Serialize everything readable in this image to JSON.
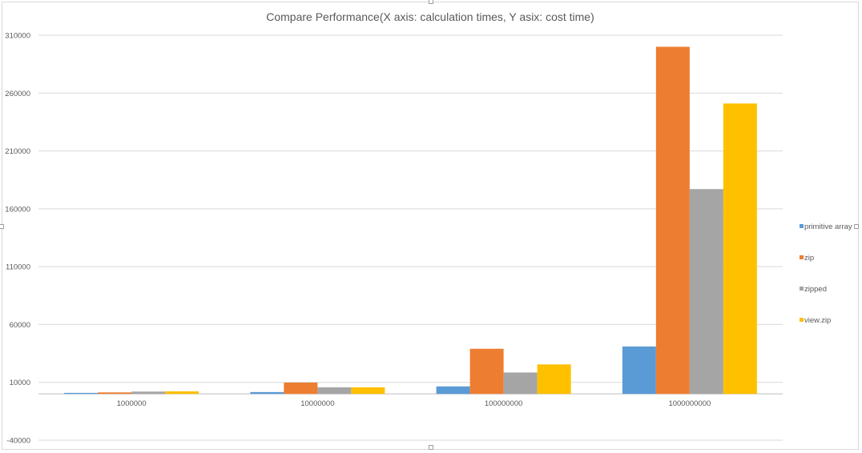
{
  "chart_data": {
    "type": "bar",
    "title": "Compare Performance(X axis: calculation times, Y asix: cost time)",
    "xlabel": "",
    "ylabel": "",
    "categories": [
      "1000000",
      "10000000",
      "100000000",
      "1000000000"
    ],
    "series": [
      {
        "name": "primitive array",
        "color": "#5b9bd5",
        "values": [
          900,
          1600,
          6500,
          41000
        ]
      },
      {
        "name": "zip",
        "color": "#ed7d31",
        "values": [
          1300,
          9800,
          39000,
          300000
        ]
      },
      {
        "name": "zipped",
        "color": "#a5a5a5",
        "values": [
          2000,
          5700,
          18500,
          177000
        ]
      },
      {
        "name": "view.zip",
        "color": "#ffc000",
        "values": [
          2200,
          5700,
          25500,
          251000
        ]
      }
    ],
    "ylim": [
      -40000,
      310000
    ],
    "yticks": [
      "-40000",
      "10000",
      "60000",
      "110000",
      "160000",
      "210000",
      "260000",
      "310000"
    ],
    "ytick_values": [
      -40000,
      10000,
      60000,
      110000,
      160000,
      210000,
      260000,
      310000
    ],
    "grid": true,
    "legend_position": "right"
  }
}
